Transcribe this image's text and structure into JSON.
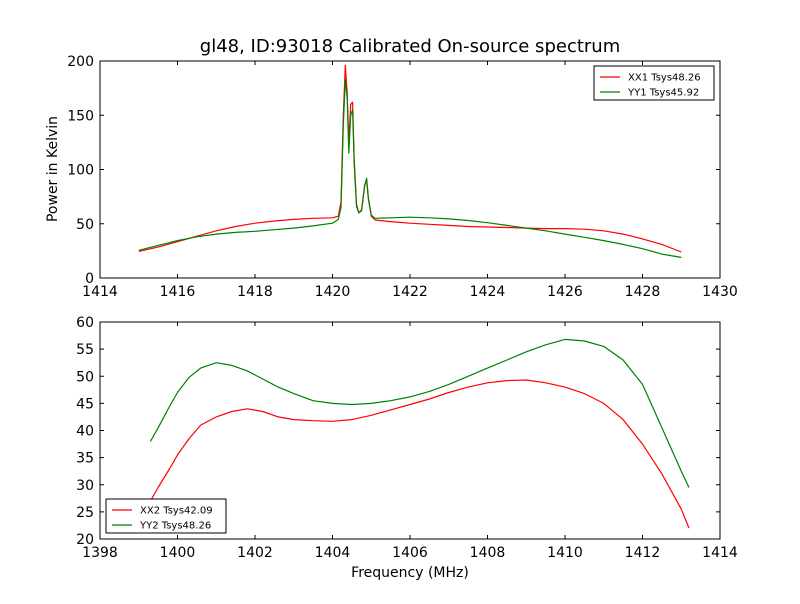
{
  "chart_data": [
    {
      "type": "line",
      "title": "gl48, ID:93018 Calibrated On-source spectrum",
      "xlabel": "",
      "ylabel": "Power in Kelvin",
      "xlim": [
        1414,
        1430
      ],
      "ylim": [
        0,
        200
      ],
      "xticks": [
        1414,
        1416,
        1418,
        1420,
        1422,
        1424,
        1426,
        1428,
        1430
      ],
      "yticks": [
        0,
        50,
        100,
        150,
        200
      ],
      "legend_position": "top-right",
      "series": [
        {
          "name": "XX1 Tsys48.26",
          "color": "#ff0000",
          "points": [
            [
              1415.0,
              24.5
            ],
            [
              1415.5,
              28.5
            ],
            [
              1416.0,
              33.5
            ],
            [
              1416.5,
              38.5
            ],
            [
              1417.0,
              43.5
            ],
            [
              1417.5,
              47.5
            ],
            [
              1418.0,
              50.5
            ],
            [
              1418.5,
              52.5
            ],
            [
              1419.0,
              54.0
            ],
            [
              1419.5,
              55.0
            ],
            [
              1420.0,
              55.5
            ],
            [
              1420.15,
              57.0
            ],
            [
              1420.22,
              70.0
            ],
            [
              1420.28,
              150.0
            ],
            [
              1420.33,
              196.0
            ],
            [
              1420.38,
              170.0
            ],
            [
              1420.42,
              125.0
            ],
            [
              1420.47,
              160.0
            ],
            [
              1420.52,
              162.0
            ],
            [
              1420.56,
              110.0
            ],
            [
              1420.62,
              68.0
            ],
            [
              1420.68,
              60.0
            ],
            [
              1420.75,
              63.0
            ],
            [
              1420.83,
              86.0
            ],
            [
              1420.88,
              90.0
            ],
            [
              1420.93,
              72.0
            ],
            [
              1421.0,
              57.0
            ],
            [
              1421.1,
              53.5
            ],
            [
              1421.5,
              52.0
            ],
            [
              1422.0,
              50.5
            ],
            [
              1422.5,
              49.5
            ],
            [
              1423.0,
              48.5
            ],
            [
              1423.5,
              47.5
            ],
            [
              1424.0,
              47.0
            ],
            [
              1424.5,
              46.5
            ],
            [
              1425.0,
              46.0
            ],
            [
              1425.5,
              45.5
            ],
            [
              1426.0,
              45.5
            ],
            [
              1426.5,
              45.0
            ],
            [
              1427.0,
              43.5
            ],
            [
              1427.5,
              40.5
            ],
            [
              1428.0,
              36.0
            ],
            [
              1428.5,
              31.0
            ],
            [
              1429.0,
              24.0
            ]
          ]
        },
        {
          "name": "YY1 Tsys45.92",
          "color": "#008000",
          "points": [
            [
              1415.0,
              25.5
            ],
            [
              1415.5,
              30.0
            ],
            [
              1416.0,
              34.5
            ],
            [
              1416.5,
              38.0
            ],
            [
              1417.0,
              40.5
            ],
            [
              1417.5,
              42.0
            ],
            [
              1418.0,
              43.0
            ],
            [
              1418.5,
              44.5
            ],
            [
              1419.0,
              46.0
            ],
            [
              1419.5,
              48.0
            ],
            [
              1420.0,
              50.5
            ],
            [
              1420.15,
              54.0
            ],
            [
              1420.22,
              65.0
            ],
            [
              1420.28,
              140.0
            ],
            [
              1420.33,
              183.0
            ],
            [
              1420.38,
              165.0
            ],
            [
              1420.42,
              115.0
            ],
            [
              1420.47,
              150.0
            ],
            [
              1420.52,
              155.0
            ],
            [
              1420.56,
              105.0
            ],
            [
              1420.62,
              66.0
            ],
            [
              1420.68,
              60.0
            ],
            [
              1420.75,
              62.0
            ],
            [
              1420.83,
              85.0
            ],
            [
              1420.88,
              92.0
            ],
            [
              1420.93,
              73.0
            ],
            [
              1421.0,
              58.0
            ],
            [
              1421.1,
              55.0
            ],
            [
              1421.5,
              55.5
            ],
            [
              1422.0,
              56.0
            ],
            [
              1422.5,
              55.5
            ],
            [
              1423.0,
              54.5
            ],
            [
              1423.5,
              53.0
            ],
            [
              1424.0,
              51.0
            ],
            [
              1424.5,
              48.5
            ],
            [
              1425.0,
              46.0
            ],
            [
              1425.5,
              43.5
            ],
            [
              1426.0,
              40.5
            ],
            [
              1426.5,
              37.5
            ],
            [
              1427.0,
              34.5
            ],
            [
              1427.5,
              31.0
            ],
            [
              1428.0,
              27.0
            ],
            [
              1428.5,
              22.0
            ],
            [
              1429.0,
              19.0
            ]
          ]
        }
      ]
    },
    {
      "type": "line",
      "title": "",
      "xlabel": "Frequency (MHz)",
      "ylabel": "",
      "xlim": [
        1398,
        1414
      ],
      "ylim": [
        20,
        60
      ],
      "xticks": [
        1398,
        1400,
        1402,
        1404,
        1406,
        1408,
        1410,
        1412,
        1414
      ],
      "yticks": [
        20,
        25,
        30,
        35,
        40,
        45,
        50,
        55,
        60
      ],
      "legend_position": "bottom-left",
      "series": [
        {
          "name": "XX2 Tsys42.09",
          "color": "#ff0000",
          "points": [
            [
              1399.3,
              27.0
            ],
            [
              1399.5,
              29.5
            ],
            [
              1399.8,
              33.0
            ],
            [
              1400.0,
              35.5
            ],
            [
              1400.3,
              38.5
            ],
            [
              1400.6,
              41.0
            ],
            [
              1401.0,
              42.5
            ],
            [
              1401.4,
              43.5
            ],
            [
              1401.8,
              44.0
            ],
            [
              1402.2,
              43.5
            ],
            [
              1402.6,
              42.5
            ],
            [
              1403.0,
              42.0
            ],
            [
              1403.5,
              41.8
            ],
            [
              1404.0,
              41.7
            ],
            [
              1404.5,
              42.0
            ],
            [
              1405.0,
              42.8
            ],
            [
              1405.5,
              43.8
            ],
            [
              1406.0,
              44.8
            ],
            [
              1406.5,
              45.8
            ],
            [
              1407.0,
              47.0
            ],
            [
              1407.5,
              48.0
            ],
            [
              1408.0,
              48.8
            ],
            [
              1408.5,
              49.2
            ],
            [
              1409.0,
              49.3
            ],
            [
              1409.5,
              48.8
            ],
            [
              1410.0,
              48.0
            ],
            [
              1410.5,
              46.8
            ],
            [
              1411.0,
              45.0
            ],
            [
              1411.5,
              42.0
            ],
            [
              1412.0,
              37.5
            ],
            [
              1412.5,
              32.0
            ],
            [
              1413.0,
              25.5
            ],
            [
              1413.2,
              22.0
            ]
          ]
        },
        {
          "name": "YY2 Tsys48.26",
          "color": "#008000",
          "points": [
            [
              1399.3,
              38.0
            ],
            [
              1399.5,
              40.5
            ],
            [
              1399.8,
              44.5
            ],
            [
              1400.0,
              47.0
            ],
            [
              1400.3,
              49.8
            ],
            [
              1400.6,
              51.5
            ],
            [
              1401.0,
              52.5
            ],
            [
              1401.4,
              52.0
            ],
            [
              1401.8,
              51.0
            ],
            [
              1402.2,
              49.5
            ],
            [
              1402.6,
              48.0
            ],
            [
              1403.0,
              46.8
            ],
            [
              1403.5,
              45.5
            ],
            [
              1404.0,
              45.0
            ],
            [
              1404.5,
              44.8
            ],
            [
              1405.0,
              45.0
            ],
            [
              1405.5,
              45.5
            ],
            [
              1406.0,
              46.2
            ],
            [
              1406.5,
              47.2
            ],
            [
              1407.0,
              48.5
            ],
            [
              1407.5,
              50.0
            ],
            [
              1408.0,
              51.5
            ],
            [
              1408.5,
              53.0
            ],
            [
              1409.0,
              54.5
            ],
            [
              1409.5,
              55.8
            ],
            [
              1410.0,
              56.8
            ],
            [
              1410.5,
              56.5
            ],
            [
              1411.0,
              55.5
            ],
            [
              1411.5,
              53.0
            ],
            [
              1412.0,
              48.5
            ],
            [
              1412.5,
              40.5
            ],
            [
              1413.0,
              32.5
            ],
            [
              1413.2,
              29.5
            ]
          ]
        }
      ]
    }
  ]
}
